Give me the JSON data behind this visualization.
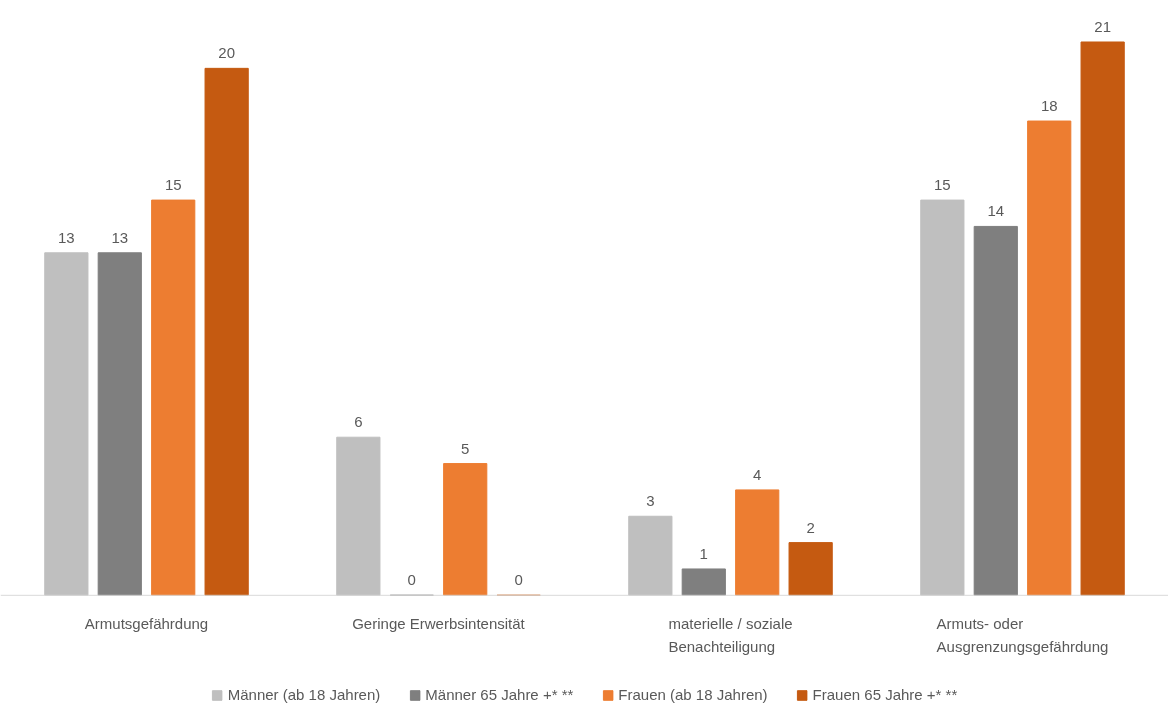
{
  "chart_data": {
    "type": "bar",
    "categories": [
      "Armutsgefährdung",
      "Geringe Erwerbsintensität",
      "materielle / soziale\nBenachteiligung",
      "Armuts- oder\nAusgrenzungsgefährdung"
    ],
    "series": [
      {
        "name": "Männer (ab 18 Jahren)",
        "color": "#bfbfbf",
        "values": [
          13,
          6,
          3,
          15
        ]
      },
      {
        "name": "Männer 65 Jahre +* **",
        "color": "#7f7f7f",
        "values": [
          13,
          0,
          1,
          14
        ]
      },
      {
        "name": "Frauen (ab 18 Jahren)",
        "color": "#ed7d31",
        "values": [
          15,
          5,
          4,
          18
        ]
      },
      {
        "name": "Frauen 65 Jahre +* **",
        "color": "#c55a11",
        "values": [
          20,
          0,
          2,
          21
        ]
      }
    ],
    "data_labels": true,
    "grid": false,
    "legend": "bottom"
  }
}
